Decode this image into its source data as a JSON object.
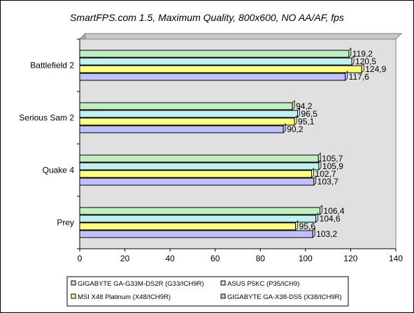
{
  "chart_data": {
    "type": "bar",
    "orientation": "horizontal",
    "title": "SmartFPS.com 1.5, Maximum Quality, 800x600, NO AA/AF, fps",
    "xlabel": "",
    "ylabel": "",
    "categories": [
      "Battlefield 2",
      "Serious Sam 2",
      "Quake 4",
      "Prey"
    ],
    "series": [
      {
        "name": "GIGABYTE GA-G33M-DS2R (G33/ICH9R)",
        "color": "#c0f0c0",
        "values": [
          119.2,
          94.2,
          105.7,
          106.4
        ],
        "labels": [
          "119,2",
          "94,2",
          "105,7",
          "106,4"
        ]
      },
      {
        "name": "ASUS P5KC (P35/ICH9)",
        "color": "#c0f0f0",
        "values": [
          120.5,
          96.5,
          105.9,
          104.6
        ],
        "labels": [
          "120,5",
          "96,5",
          "105,9",
          "104,6"
        ]
      },
      {
        "name": "MSI X48 Platinum (X48/ICH9R)",
        "color": "#ffff80",
        "values": [
          124.9,
          95.1,
          102.7,
          95.6
        ],
        "labels": [
          "124,9",
          "95,1",
          "102,7",
          "95,6"
        ]
      },
      {
        "name": "GIGABYTE GA-X38-DS5 (X38/ICH9R)",
        "color": "#c0c0ff",
        "values": [
          117.6,
          90.2,
          103.7,
          103.2
        ],
        "labels": [
          "117,6",
          "90,2",
          "103,7",
          "103,2"
        ]
      }
    ],
    "xlim": [
      0,
      140
    ],
    "ticks": [
      "0",
      "20",
      "40",
      "60",
      "80",
      "100",
      "120",
      "140"
    ],
    "grid": false,
    "legend_position": "bottom",
    "plot_background": "#e0e0e0"
  }
}
